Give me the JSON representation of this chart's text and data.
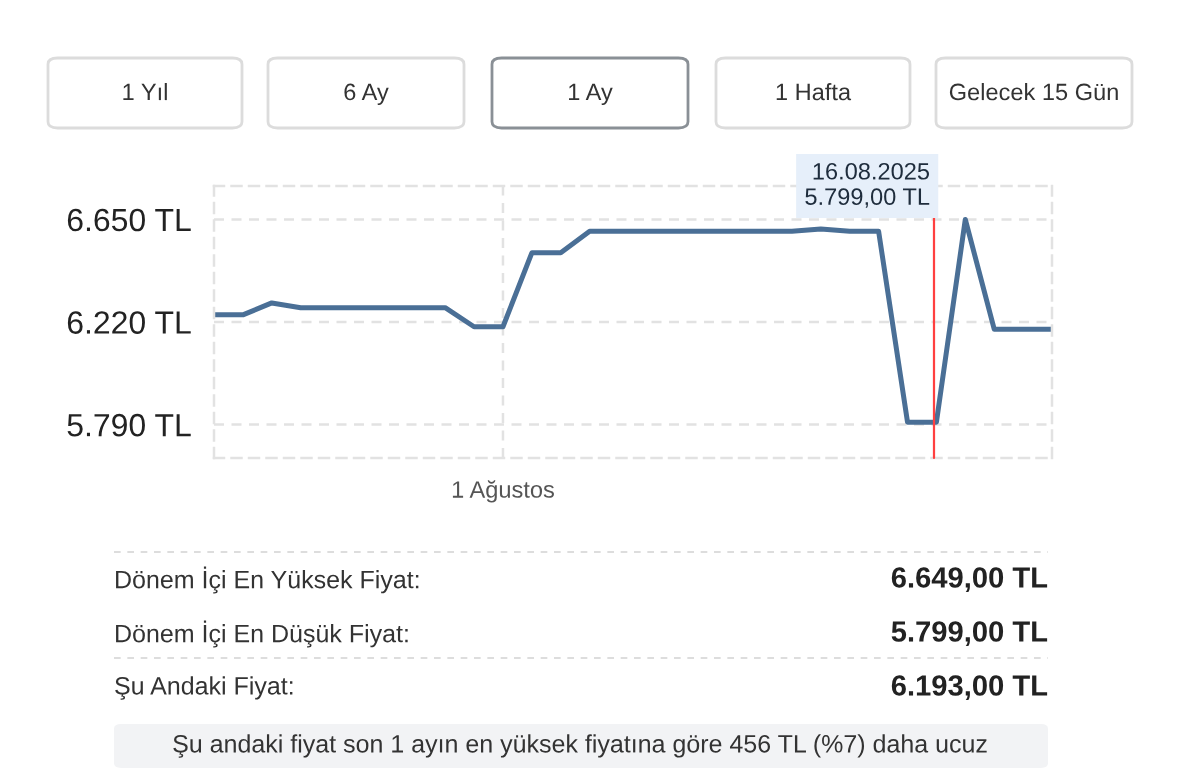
{
  "chart_data": {
    "type": "line",
    "categories": [
      null,
      null,
      null,
      null,
      null,
      null,
      null,
      null,
      null,
      null,
      "1 Ağustos",
      null,
      null,
      null,
      null,
      null,
      null,
      null,
      null,
      null,
      null,
      null,
      null,
      null,
      null,
      null,
      null,
      null,
      null,
      null
    ],
    "series": [
      {
        "color": "#4a6f96",
        "values": [
          6250,
          6250,
          6300,
          6280,
          6280,
          6280,
          6280,
          6280,
          6280,
          6200,
          6200,
          6510,
          6510,
          6600,
          6600,
          6600,
          6600,
          6600,
          6600,
          6600,
          6600,
          6610,
          6600,
          6600,
          5800,
          5800,
          6650,
          6190,
          6190,
          6190
        ]
      }
    ],
    "ylim": [
      5650,
      6790
    ],
    "yticks": [
      {
        "value": 5790,
        "label": "5.790 TL"
      },
      {
        "value": 6220,
        "label": "6.220 TL"
      },
      {
        "value": 6650,
        "label": "6.650 TL"
      }
    ],
    "grid": true,
    "line_style": "solid",
    "marker": "none",
    "annotations": [
      "16.08.2025\n5.799,00 TL",
      "1 Yıl",
      "6 Ay",
      "1 Ay",
      "1 Hafta",
      "Gelecek 15 Gün",
      "Dönem İçi En Yüksek Fiyat:",
      "6.649,00 TL",
      "Dönem İçi En Düşük Fiyat:",
      "5.799,00 TL",
      "Şu Andaki Fiyat:",
      "6.193,00 TL",
      "Şu andaki fiyat son 1 ayın en yüksek fiyatına göre 456 TL (%7) daha ucuz"
    ]
  }
}
